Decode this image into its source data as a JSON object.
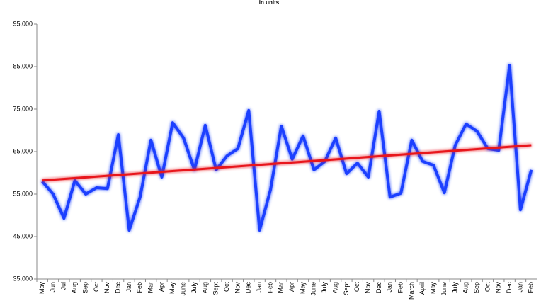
{
  "chart_data": {
    "type": "line",
    "title": "in units",
    "categories": [
      "May",
      "Jun",
      "Jul",
      "Aug",
      "Sep",
      "Oct",
      "Nov",
      "Dec",
      "Jan",
      "Feb",
      "Mar",
      "Apr",
      "May",
      "June",
      "July",
      "Aug",
      "Sept",
      "Oct",
      "Nov",
      "Dec",
      "Jan",
      "Feb",
      "Mar",
      "Apr",
      "May",
      "June",
      "July",
      "Aug",
      "Sept",
      "Oct",
      "Nov",
      "Dec",
      "Jan",
      "Feb",
      "March",
      "April",
      "May",
      "June",
      "July",
      "Aug",
      "Sep",
      "Oct",
      "Nov",
      "Dec",
      "Jan",
      "Feb"
    ],
    "values": [
      58000,
      55000,
      49300,
      58200,
      55000,
      56500,
      56300,
      69000,
      46500,
      54300,
      67700,
      59000,
      71800,
      68200,
      60700,
      71200,
      60700,
      64000,
      65700,
      74700,
      46500,
      56000,
      71000,
      63200,
      68700,
      60700,
      62700,
      68200,
      59800,
      62300,
      59000,
      74500,
      54300,
      55200,
      67700,
      62700,
      61800,
      55300,
      66500,
      71500,
      69800,
      65700,
      65300,
      85300,
      51300,
      60700
    ],
    "color": "#1f3fff",
    "trendline": {
      "values": [
        58200,
        66500
      ],
      "color": "#e8141e"
    },
    "ylim": [
      35000,
      95000
    ],
    "yticks": [
      {
        "value": 35000,
        "label": "35,000"
      },
      {
        "value": 45000,
        "label": "45,000"
      },
      {
        "value": 55000,
        "label": "55,000"
      },
      {
        "value": 65000,
        "label": "65,000"
      },
      {
        "value": 75000,
        "label": "75,000"
      },
      {
        "value": 85000,
        "label": "85,000"
      },
      {
        "value": 95000,
        "label": "95,000"
      }
    ],
    "grid": false
  }
}
